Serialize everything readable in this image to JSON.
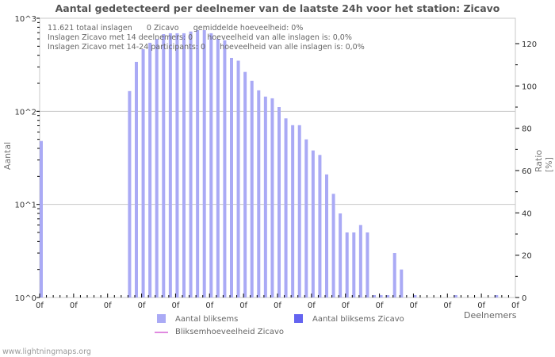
{
  "title": "Aantal gedetecteerd per deelnemer van de laatste 24h voor het station: Zicavo",
  "info_lines": [
    "11.621 totaal inslagen      0 Zicavo      gemiddelde hoeveelheid: 0%",
    "Inslagen Zicavo met 14 deelnemers: 0      hoeveelheid van alle inslagen is: 0,0%",
    "Inslagen Zicavo met 14-24 participants: 0      hoeveelheid van alle inslagen is: 0,0%"
  ],
  "legend": {
    "item1": "Aantal bliksems",
    "item2": "Aantal bliksems Zicavo",
    "item3": "Bliksemhoeveelheid Zicavo"
  },
  "footer": "www.lightningmaps.org",
  "colors": {
    "bars": "#aaaaf5",
    "bars_station": "#6464f0",
    "ratio_line": "#e08ae0",
    "grid": "#c8c8c8"
  },
  "chart_data": {
    "type": "bar",
    "title": "Aantal gedetecteerd per deelnemer van de laatste 24h voor het station: Zicavo",
    "xlabel": "Deelnemers",
    "ylabel": "Aantal",
    "ylabel_right": "Ratio [%]",
    "yscale": "log",
    "ylim": [
      1,
      1000
    ],
    "y_ticks": [
      "10^0",
      "10^1",
      "10^2",
      "10^3"
    ],
    "y_right_ticks": [
      0,
      20,
      40,
      60,
      80,
      100,
      120
    ],
    "ylim_right": [
      0,
      132
    ],
    "x_tick_labels": [
      "0f",
      "0f",
      "0f",
      "0f",
      "0f",
      "0f",
      "0f",
      "0f",
      "0f",
      "0f",
      "0f",
      "0f",
      "0f",
      "0f",
      "0f"
    ],
    "legend": [
      "Aantal bliksems",
      "Aantal bliksems Zicavo",
      "Bliksemhoeveelheid Zicavo"
    ],
    "legend_position": "bottom",
    "grid": true,
    "categories_count": 70,
    "series": [
      {
        "name": "Aantal bliksems",
        "values": [
          48,
          0,
          0,
          0,
          0,
          0,
          0,
          0,
          0,
          0,
          0,
          0,
          0,
          165,
          340,
          465,
          545,
          600,
          675,
          690,
          690,
          690,
          720,
          745,
          745,
          690,
          600,
          580,
          375,
          350,
          265,
          213,
          168,
          144,
          138,
          111,
          84,
          71,
          71,
          50,
          38,
          34,
          21,
          13,
          8,
          5,
          5,
          6,
          5,
          1,
          1,
          1,
          3,
          2,
          0,
          1,
          0,
          0,
          0,
          0,
          0,
          1,
          0,
          0,
          0,
          0,
          0,
          1,
          0,
          0
        ]
      },
      {
        "name": "Aantal bliksems Zicavo",
        "values": []
      },
      {
        "name": "Bliksemhoeveelheid Zicavo",
        "values": []
      }
    ]
  }
}
